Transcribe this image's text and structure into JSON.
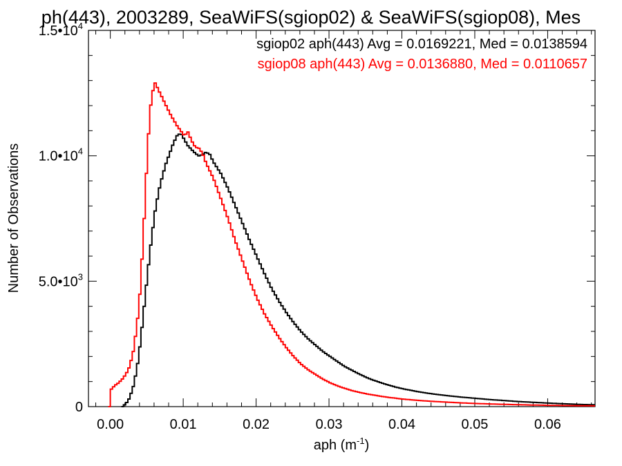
{
  "chart_data": {
    "type": "line",
    "title": "ph(443), 2003289, SeaWiFS(sgiop02) & SeaWiFS(sgiop08), Mes",
    "xlabel": "aph (m",
    "xlabel_sup": "-1",
    "xlabel_close": ")",
    "ylabel": "Number of Observations",
    "xlim": [
      -0.003,
      0.0665
    ],
    "ylim": [
      0,
      15000
    ],
    "x_ticks": [
      0.0,
      0.01,
      0.02,
      0.03,
      0.04,
      0.05,
      0.06
    ],
    "x_tick_labels": [
      "0.00",
      "0.01",
      "0.02",
      "0.03",
      "0.04",
      "0.05",
      "0.06"
    ],
    "y_ticks": [
      {
        "value": 0,
        "mantissa": "0",
        "exp": ""
      },
      {
        "value": 5000,
        "mantissa": "5.0•10",
        "exp": "3"
      },
      {
        "value": 10000,
        "mantissa": "1.0•10",
        "exp": "4"
      },
      {
        "value": 15000,
        "mantissa": "1.5•10",
        "exp": "4"
      }
    ],
    "grid": false,
    "legend_position": "top-right",
    "series": [
      {
        "name": "sgiop02 aph(443) Avg = 0.0169221, Med = 0.0138594",
        "color": "#000000",
        "points": [
          [
            0.0015,
            0
          ],
          [
            0.002,
            120
          ],
          [
            0.0025,
            350
          ],
          [
            0.003,
            800
          ],
          [
            0.0035,
            1500
          ],
          [
            0.004,
            2600
          ],
          [
            0.0045,
            4000
          ],
          [
            0.005,
            5400
          ],
          [
            0.0055,
            6700
          ],
          [
            0.006,
            7800
          ],
          [
            0.0065,
            8600
          ],
          [
            0.007,
            9200
          ],
          [
            0.0075,
            9700
          ],
          [
            0.008,
            10100
          ],
          [
            0.0085,
            10500
          ],
          [
            0.009,
            10800
          ],
          [
            0.0095,
            10900
          ],
          [
            0.01,
            10650
          ],
          [
            0.0105,
            10400
          ],
          [
            0.011,
            10250
          ],
          [
            0.0115,
            10100
          ],
          [
            0.012,
            10000
          ],
          [
            0.0125,
            10050
          ],
          [
            0.013,
            10150
          ],
          [
            0.0135,
            10050
          ],
          [
            0.014,
            9750
          ],
          [
            0.015,
            9300
          ],
          [
            0.016,
            8700
          ],
          [
            0.017,
            8000
          ],
          [
            0.018,
            7300
          ],
          [
            0.019,
            6600
          ],
          [
            0.02,
            5950
          ],
          [
            0.021,
            5300
          ],
          [
            0.022,
            4700
          ],
          [
            0.023,
            4200
          ],
          [
            0.024,
            3750
          ],
          [
            0.025,
            3350
          ],
          [
            0.026,
            3000
          ],
          [
            0.027,
            2700
          ],
          [
            0.028,
            2450
          ],
          [
            0.029,
            2200
          ],
          [
            0.03,
            2000
          ],
          [
            0.031,
            1800
          ],
          [
            0.032,
            1600
          ],
          [
            0.033,
            1450
          ],
          [
            0.034,
            1300
          ],
          [
            0.035,
            1160
          ],
          [
            0.036,
            1050
          ],
          [
            0.037,
            950
          ],
          [
            0.038,
            860
          ],
          [
            0.039,
            780
          ],
          [
            0.04,
            710
          ],
          [
            0.042,
            600
          ],
          [
            0.044,
            510
          ],
          [
            0.046,
            440
          ],
          [
            0.048,
            380
          ],
          [
            0.05,
            330
          ],
          [
            0.052,
            280
          ],
          [
            0.054,
            240
          ],
          [
            0.056,
            200
          ],
          [
            0.058,
            170
          ],
          [
            0.06,
            140
          ],
          [
            0.062,
            115
          ],
          [
            0.064,
            90
          ],
          [
            0.0665,
            70
          ]
        ]
      },
      {
        "name": "sgiop08 aph(443) Avg = 0.0136880, Med = 0.0110657",
        "color": "#ff0000",
        "points": [
          [
            -0.0003,
            0
          ],
          [
            0.0,
            700
          ],
          [
            0.0005,
            850
          ],
          [
            0.001,
            950
          ],
          [
            0.0015,
            1100
          ],
          [
            0.002,
            1300
          ],
          [
            0.0025,
            1600
          ],
          [
            0.003,
            2200
          ],
          [
            0.0035,
            3200
          ],
          [
            0.004,
            4800
          ],
          [
            0.0045,
            7500
          ],
          [
            0.005,
            10500
          ],
          [
            0.0055,
            12400
          ],
          [
            0.006,
            12900
          ],
          [
            0.0065,
            12600
          ],
          [
            0.007,
            12300
          ],
          [
            0.0075,
            12000
          ],
          [
            0.008,
            11700
          ],
          [
            0.0085,
            11450
          ],
          [
            0.009,
            11200
          ],
          [
            0.0095,
            11000
          ],
          [
            0.01,
            10800
          ],
          [
            0.0105,
            10950
          ],
          [
            0.011,
            10600
          ],
          [
            0.0115,
            10350
          ],
          [
            0.012,
            10300
          ],
          [
            0.0125,
            10100
          ],
          [
            0.013,
            9700
          ],
          [
            0.014,
            9100
          ],
          [
            0.015,
            8300
          ],
          [
            0.016,
            7500
          ],
          [
            0.017,
            6600
          ],
          [
            0.018,
            5800
          ],
          [
            0.019,
            5000
          ],
          [
            0.02,
            4300
          ],
          [
            0.021,
            3700
          ],
          [
            0.022,
            3200
          ],
          [
            0.023,
            2750
          ],
          [
            0.024,
            2350
          ],
          [
            0.025,
            2000
          ],
          [
            0.026,
            1700
          ],
          [
            0.027,
            1470
          ],
          [
            0.028,
            1280
          ],
          [
            0.029,
            1100
          ],
          [
            0.03,
            950
          ],
          [
            0.031,
            830
          ],
          [
            0.032,
            730
          ],
          [
            0.033,
            640
          ],
          [
            0.034,
            570
          ],
          [
            0.035,
            510
          ],
          [
            0.036,
            460
          ],
          [
            0.037,
            410
          ],
          [
            0.038,
            370
          ],
          [
            0.039,
            335
          ],
          [
            0.04,
            300
          ],
          [
            0.042,
            250
          ],
          [
            0.044,
            210
          ],
          [
            0.046,
            180
          ],
          [
            0.048,
            150
          ],
          [
            0.05,
            125
          ],
          [
            0.052,
            105
          ],
          [
            0.054,
            90
          ],
          [
            0.056,
            75
          ],
          [
            0.058,
            62
          ],
          [
            0.06,
            52
          ],
          [
            0.062,
            43
          ],
          [
            0.064,
            36
          ],
          [
            0.0665,
            30
          ]
        ]
      }
    ]
  }
}
